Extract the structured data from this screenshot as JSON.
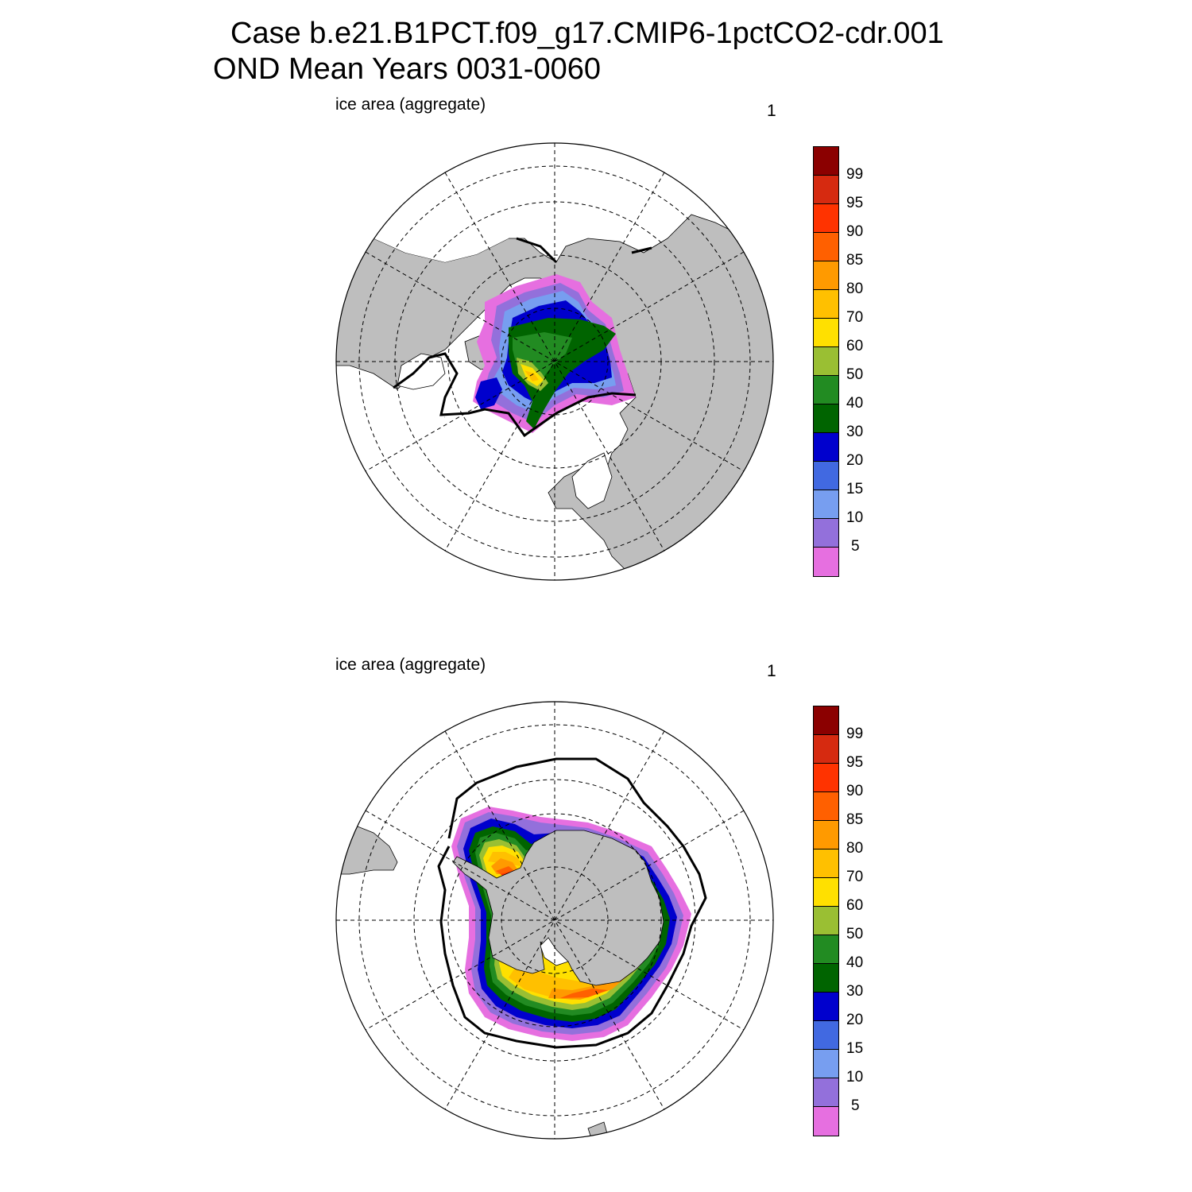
{
  "title": {
    "line1": "Case b.e21.B1PCT.f09_g17.CMIP6-1pctCO2-cdr.001",
    "line2": "OND Mean   Years 0031-0060"
  },
  "panels": [
    {
      "id": "north",
      "hemisphere": "north",
      "label": "ice area  (aggregate)",
      "number": "1"
    },
    {
      "id": "south",
      "hemisphere": "south",
      "label": "ice area  (aggregate)",
      "number": "1"
    }
  ],
  "colorbar": {
    "labels": [
      "99",
      "95",
      "90",
      "85",
      "80",
      "70",
      "60",
      "50",
      "40",
      "30",
      "20",
      "15",
      "10",
      "5"
    ],
    "colors_top_to_bottom": [
      "#8b0000",
      "#d62a10",
      "#ff3300",
      "#ff6000",
      "#ff9a00",
      "#ffc000",
      "#ffe000",
      "#9abf33",
      "#228b22",
      "#006400",
      "#0000cd",
      "#4169e1",
      "#779ef0",
      "#9370db",
      "#e66fe0"
    ]
  },
  "colors": {
    "land": "#bebebe",
    "ocean": "#ffffff",
    "outline": "#000000"
  }
}
